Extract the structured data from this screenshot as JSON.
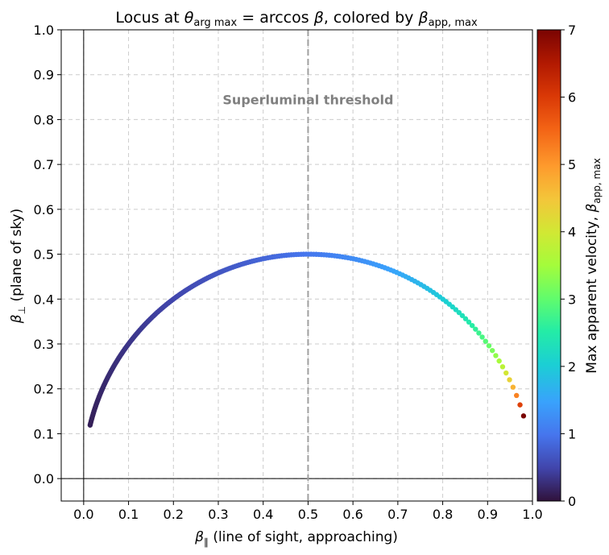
{
  "chart_data": {
    "type": "scatter",
    "title": {
      "prefix": "Locus at ",
      "theta": "θ",
      "theta_sub": "arg max",
      "equals": " = arccos ",
      "beta": "β",
      "middle": ", colored by ",
      "beta2": "β",
      "beta2_sub": "app, max"
    },
    "xlabel": {
      "symbol": "β",
      "sub": "∥",
      "text": " (line of sight, approaching)"
    },
    "ylabel": {
      "symbol": "β",
      "sub": "⊥",
      "text": " (plane of sky)"
    },
    "xlim": [
      -0.05,
      1.0
    ],
    "ylim": [
      -0.05,
      1.0
    ],
    "xticks": [
      "0.0",
      "0.1",
      "0.2",
      "0.3",
      "0.4",
      "0.5",
      "0.6",
      "0.7",
      "0.8",
      "0.9",
      "1.0"
    ],
    "yticks": [
      "0.0",
      "0.1",
      "0.2",
      "0.3",
      "0.4",
      "0.5",
      "0.6",
      "0.7",
      "0.8",
      "0.9",
      "1.0"
    ],
    "grid": true,
    "vline": {
      "x": 0.5,
      "color": "#a0a0a0",
      "style": "dashed"
    },
    "annotation": {
      "text": "Superluminal threshold",
      "x": 0.5,
      "y": 0.845,
      "color": "#808080"
    },
    "colorbar": {
      "label_text": "Max apparent velocity, ",
      "label_symbol": "β",
      "label_sub": "app, max",
      "range": [
        0,
        7
      ],
      "ticks": [
        "0",
        "1",
        "2",
        "3",
        "4",
        "5",
        "6",
        "7"
      ],
      "colormap": "turbo"
    },
    "series": {
      "name": "locus",
      "description_formula": "x = beta^2, y = beta*sqrt(1-beta^2), color = beta/sqrt(1-beta^2)",
      "beta_min": 0.12,
      "beta_max": 0.99,
      "n_points": 220
    }
  }
}
